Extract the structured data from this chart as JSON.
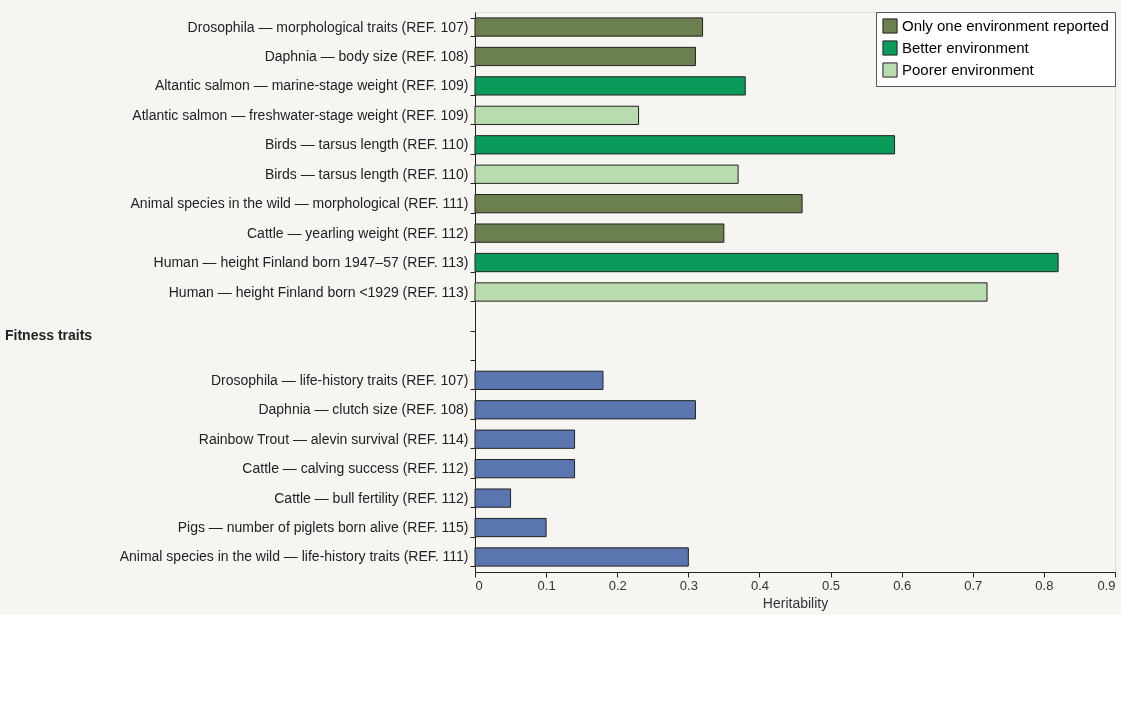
{
  "chart_data": {
    "type": "bar",
    "orientation": "horizontal",
    "categories": [
      "Drosophila — morphological traits (REF. 107)",
      "Daphnia — body size (REF. 108)",
      "Altantic salmon — marine-stage weight (REF. 109)",
      "Atlantic salmon — freshwater-stage weight (REF. 109)",
      "Birds — tarsus length (REF. 110)",
      "Birds — tarsus length (REF. 110)",
      "Animal species in the wild — morphological (REF. 111)",
      "Cattle — yearling weight (REF. 112)",
      "Human — height Finland born 1947–57 (REF. 113)",
      "Human — height Finland born <1929 (REF. 113)",
      null,
      null,
      "Drosophila — life-history traits (REF. 107)",
      "Daphnia — clutch size (REF. 108)",
      "Rainbow Trout — alevin survival (REF. 114)",
      "Cattle — calving success (REF. 112)",
      "Cattle — bull fertility (REF. 112)",
      "Pigs — number of piglets born alive (REF. 115)",
      "Animal species in the wild — life-history traits (REF. 111)"
    ],
    "series": [
      {
        "name": "Only one environment reported",
        "color": "#6b7f4f",
        "values": [
          0.32,
          0.31,
          null,
          null,
          null,
          null,
          0.46,
          0.35,
          null,
          null,
          null,
          null,
          null,
          null,
          null,
          null,
          null,
          null,
          null
        ]
      },
      {
        "name": "Better environment",
        "color": "#0a9a5a",
        "values": [
          null,
          null,
          0.38,
          null,
          0.59,
          null,
          null,
          null,
          0.82,
          null,
          null,
          null,
          null,
          null,
          null,
          null,
          null,
          null,
          null
        ]
      },
      {
        "name": "Poorer environment",
        "color": "#b9dcae",
        "values": [
          null,
          null,
          null,
          0.23,
          null,
          0.37,
          null,
          null,
          null,
          0.72,
          null,
          null,
          null,
          null,
          null,
          null,
          null,
          null,
          null
        ]
      },
      {
        "color": "#5a75b0",
        "values": [
          null,
          null,
          null,
          null,
          null,
          null,
          null,
          null,
          null,
          null,
          null,
          null,
          0.18,
          0.31,
          0.14,
          0.14,
          0.05,
          0.1,
          0.3
        ]
      }
    ],
    "xlabel": "Heritability",
    "xlim": [
      0,
      0.9
    ],
    "xticks": [
      0,
      0.1,
      0.2,
      0.3,
      0.4,
      0.5,
      0.6,
      0.7,
      0.8,
      0.9
    ],
    "annotations": [
      "Fitness traits"
    ],
    "legend": "top right",
    "grid": false
  }
}
